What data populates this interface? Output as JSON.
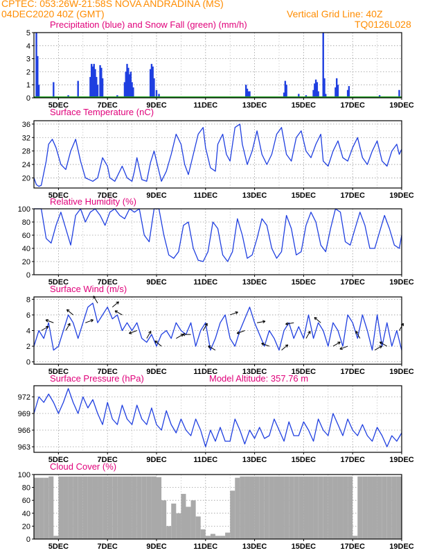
{
  "header": {
    "line1_left": "CPTEC:  053:26W-21:58S  NOVA ANDRADINA (MS)",
    "line2_left": "04DEC2020 40Z (GMT)",
    "line2_right": "Vertical Grid Line: 40Z",
    "line3_right": "TQ0126L028"
  },
  "colors": {
    "header": "#ff8c00",
    "title": "#e0007a",
    "line": "#1f3fe0",
    "precip": "#1f3fe0",
    "snow": "#1fa01f",
    "cloud": "#a9a9a9"
  },
  "chart_data": [
    {
      "type": "bar",
      "title": "Precipitation (blue) and Snow Fall (green) (mm/h)",
      "x_tick_labels": [
        "5DEC",
        "7DEC",
        "9DEC",
        "11DEC",
        "13DEC",
        "15DEC",
        "17DEC",
        "19DEC"
      ],
      "ylim": [
        0,
        5
      ],
      "yticks": [
        0,
        1,
        2,
        3,
        4,
        5
      ],
      "series": [
        {
          "name": "precipitation",
          "points": [
            [
              4.1,
              5.0
            ],
            [
              4.15,
              3.2
            ],
            [
              4.2,
              1.0
            ],
            [
              4.8,
              1.2
            ],
            [
              5.4,
              0.2
            ],
            [
              5.8,
              1.3
            ],
            [
              6.3,
              1.6
            ],
            [
              6.35,
              2.6
            ],
            [
              6.4,
              2.4
            ],
            [
              6.45,
              2.6
            ],
            [
              6.5,
              2.2
            ],
            [
              6.55,
              1.6
            ],
            [
              6.6,
              1.0
            ],
            [
              6.7,
              2.5
            ],
            [
              6.75,
              2.3
            ],
            [
              6.8,
              1.5
            ],
            [
              7.4,
              0.2
            ],
            [
              7.7,
              1.2
            ],
            [
              7.75,
              2.0
            ],
            [
              7.8,
              2.6
            ],
            [
              7.85,
              2.3
            ],
            [
              7.9,
              1.8
            ],
            [
              7.95,
              2.0
            ],
            [
              8.0,
              1.2
            ],
            [
              8.05,
              0.8
            ],
            [
              8.5,
              0.1
            ],
            [
              8.75,
              2.2
            ],
            [
              8.8,
              2.6
            ],
            [
              8.85,
              2.4
            ],
            [
              8.9,
              1.5
            ],
            [
              9.0,
              0.6
            ],
            [
              9.1,
              0.3
            ],
            [
              9.5,
              0.1
            ],
            [
              12.65,
              1.0
            ],
            [
              12.7,
              0.7
            ],
            [
              12.75,
              0.5
            ],
            [
              12.8,
              0.5
            ],
            [
              14.2,
              0.4
            ],
            [
              14.25,
              1.3
            ],
            [
              14.3,
              1.0
            ],
            [
              14.8,
              0.3
            ],
            [
              15.1,
              0.2
            ],
            [
              15.4,
              0.6
            ],
            [
              15.45,
              1.1
            ],
            [
              15.5,
              1.4
            ],
            [
              15.55,
              1.2
            ],
            [
              15.6,
              0.5
            ],
            [
              15.8,
              5.0
            ],
            [
              15.85,
              1.5
            ],
            [
              15.9,
              0.3
            ],
            [
              16.3,
              0.8
            ],
            [
              16.35,
              1.5
            ],
            [
              16.4,
              1.0
            ],
            [
              16.8,
              0.6
            ],
            [
              16.85,
              0.9
            ],
            [
              18.1,
              0.2
            ],
            [
              18.9,
              0.6
            ]
          ]
        },
        {
          "name": "snow fall",
          "values": "zero"
        }
      ]
    },
    {
      "type": "line",
      "title": "Surface Temperature (nC)",
      "x_tick_labels": [
        "5DEC",
        "7DEC",
        "9DEC",
        "11DEC",
        "13DEC",
        "15DEC",
        "17DEC",
        "19DEC"
      ],
      "ylim": [
        17,
        37
      ],
      "yticks": [
        20,
        24,
        28,
        32,
        36
      ],
      "x": [
        4.0,
        4.1,
        4.2,
        4.3,
        4.5,
        4.6,
        4.75,
        4.9,
        5.1,
        5.3,
        5.5,
        5.7,
        5.9,
        6.1,
        6.4,
        6.6,
        6.8,
        7.0,
        7.1,
        7.3,
        7.5,
        7.6,
        7.8,
        8.0,
        8.1,
        8.2,
        8.4,
        8.6,
        8.75,
        8.9,
        9.1,
        9.2,
        9.4,
        9.6,
        9.8,
        10.0,
        10.15,
        10.3,
        10.5,
        10.7,
        10.9,
        11.0,
        11.2,
        11.4,
        11.5,
        11.7,
        11.85,
        12.0,
        12.2,
        12.4,
        12.5,
        12.7,
        12.9,
        13.1,
        13.3,
        13.5,
        13.7,
        13.9,
        14.1,
        14.3,
        14.5,
        14.7,
        14.9,
        15.1,
        15.3,
        15.5,
        15.7,
        15.8,
        16.0,
        16.2,
        16.4,
        16.6,
        16.8,
        17.0,
        17.2,
        17.4,
        17.6,
        17.8,
        18.0,
        18.2,
        18.4,
        18.6,
        18.8,
        18.9,
        19.0
      ],
      "y": [
        20,
        18,
        17.5,
        17.8,
        25,
        30,
        31.5,
        29,
        24,
        22.5,
        28,
        31.5,
        25,
        20,
        19,
        20,
        26,
        23.5,
        20,
        19,
        22,
        23.5,
        20,
        19,
        22,
        26,
        19.5,
        19,
        24.5,
        28,
        22,
        19,
        22,
        27,
        33,
        30,
        24,
        21,
        27,
        33,
        35,
        29,
        23,
        22,
        30,
        33,
        27,
        25,
        35,
        36,
        30,
        24,
        28,
        34,
        27,
        24,
        27,
        33,
        35,
        27,
        25,
        32,
        34,
        28,
        26,
        30,
        33,
        25,
        23.5,
        28,
        31,
        26,
        25,
        29,
        32,
        26,
        24,
        28,
        31,
        25,
        23.5,
        28,
        30,
        27,
        28.5
      ]
    },
    {
      "type": "line",
      "title": "Relative Humidity (%)",
      "x_tick_labels": [
        "5DEC",
        "7DEC",
        "9DEC",
        "11DEC",
        "13DEC",
        "15DEC",
        "17DEC",
        "19DEC"
      ],
      "ylim": [
        0,
        100
      ],
      "yticks": [
        0,
        20,
        40,
        60,
        80,
        100
      ],
      "x": [
        4.0,
        4.3,
        4.5,
        4.7,
        4.9,
        5.1,
        5.3,
        5.5,
        5.7,
        5.9,
        6.1,
        6.3,
        6.5,
        6.7,
        6.9,
        7.1,
        7.3,
        7.5,
        7.7,
        7.9,
        8.1,
        8.3,
        8.5,
        8.7,
        8.9,
        9.1,
        9.3,
        9.5,
        9.7,
        9.9,
        10.1,
        10.3,
        10.5,
        10.7,
        10.9,
        11.1,
        11.3,
        11.5,
        11.7,
        11.9,
        12.1,
        12.3,
        12.5,
        12.7,
        12.9,
        13.1,
        13.3,
        13.5,
        13.7,
        13.9,
        14.1,
        14.3,
        14.5,
        14.7,
        14.9,
        15.1,
        15.3,
        15.5,
        15.7,
        15.9,
        16.1,
        16.3,
        16.5,
        16.7,
        16.9,
        17.1,
        17.3,
        17.5,
        17.7,
        17.9,
        18.1,
        18.3,
        18.5,
        18.7,
        18.9,
        19.0
      ],
      "y": [
        100,
        100,
        55,
        48,
        75,
        95,
        70,
        45,
        90,
        100,
        80,
        95,
        100,
        90,
        75,
        95,
        100,
        90,
        85,
        100,
        95,
        100,
        60,
        50,
        100,
        100,
        60,
        30,
        25,
        35,
        75,
        80,
        40,
        22,
        20,
        35,
        80,
        70,
        30,
        20,
        35,
        85,
        60,
        25,
        30,
        55,
        85,
        75,
        40,
        25,
        35,
        90,
        70,
        30,
        35,
        75,
        95,
        80,
        45,
        35,
        70,
        100,
        95,
        50,
        45,
        70,
        95,
        75,
        40,
        40,
        65,
        90,
        70,
        45,
        40,
        60
      ]
    },
    {
      "type": "line",
      "title": "Surface Wind (m/s)",
      "x_tick_labels": [
        "5DEC",
        "7DEC",
        "9DEC",
        "11DEC",
        "13DEC",
        "15DEC",
        "17DEC",
        "19DEC"
      ],
      "ylim": [
        -0.3,
        8.3
      ],
      "yticks": [
        0,
        2,
        4,
        6,
        8
      ],
      "x": [
        4.0,
        4.2,
        4.4,
        4.6,
        4.8,
        5.0,
        5.2,
        5.4,
        5.6,
        5.8,
        6.0,
        6.2,
        6.4,
        6.6,
        6.8,
        7.0,
        7.2,
        7.4,
        7.6,
        7.8,
        8.0,
        8.2,
        8.4,
        8.6,
        8.8,
        9.0,
        9.2,
        9.4,
        9.6,
        9.8,
        10.0,
        10.2,
        10.4,
        10.6,
        10.8,
        11.0,
        11.2,
        11.4,
        11.6,
        11.8,
        12.0,
        12.2,
        12.4,
        12.6,
        12.8,
        13.0,
        13.2,
        13.4,
        13.6,
        13.8,
        14.0,
        14.2,
        14.4,
        14.6,
        14.8,
        15.0,
        15.2,
        15.4,
        15.6,
        15.8,
        16.0,
        16.2,
        16.4,
        16.6,
        16.8,
        17.0,
        17.2,
        17.4,
        17.6,
        17.8,
        18.0,
        18.2,
        18.4,
        18.6,
        18.8,
        19.0
      ],
      "y": [
        2,
        4,
        3,
        5,
        1.5,
        2,
        4,
        6,
        5,
        3,
        5,
        7,
        7.5,
        5,
        6,
        7,
        5.5,
        6,
        4,
        5,
        4,
        5,
        3,
        2.5,
        3.5,
        2,
        3.5,
        4,
        3,
        5,
        4,
        3.5,
        5,
        2,
        4,
        5,
        1.5,
        3,
        5,
        6,
        3,
        2,
        4,
        5.5,
        7,
        5,
        3.5,
        2,
        4,
        3,
        1.5,
        4,
        5,
        3,
        4.5,
        3,
        6,
        3,
        5,
        4,
        2,
        5,
        4,
        2,
        6,
        5,
        3,
        6,
        4,
        1.5,
        6,
        2,
        5,
        2,
        4,
        1.5
      ]
    },
    {
      "type": "line",
      "title": "Surface Pressure (hPa)",
      "annotation": "Model Altitude: 357.76 m",
      "x_tick_labels": [
        "5DEC",
        "7DEC",
        "9DEC",
        "11DEC",
        "13DEC",
        "15DEC",
        "17DEC",
        "19DEC"
      ],
      "ylim": [
        962,
        974
      ],
      "yticks": [
        963,
        966,
        969,
        972
      ],
      "x": [
        4.0,
        4.2,
        4.4,
        4.6,
        4.8,
        5.0,
        5.2,
        5.4,
        5.6,
        5.8,
        6.0,
        6.2,
        6.4,
        6.6,
        6.8,
        7.0,
        7.2,
        7.4,
        7.6,
        7.8,
        8.0,
        8.2,
        8.4,
        8.6,
        8.8,
        9.0,
        9.2,
        9.4,
        9.6,
        9.8,
        10.0,
        10.2,
        10.4,
        10.6,
        10.8,
        11.0,
        11.2,
        11.4,
        11.6,
        11.8,
        12.0,
        12.2,
        12.4,
        12.6,
        12.8,
        13.0,
        13.2,
        13.4,
        13.6,
        13.8,
        14.0,
        14.2,
        14.4,
        14.6,
        14.8,
        15.0,
        15.2,
        15.4,
        15.6,
        15.8,
        16.0,
        16.2,
        16.4,
        16.6,
        16.8,
        17.0,
        17.2,
        17.4,
        17.6,
        17.8,
        18.0,
        18.2,
        18.4,
        18.6,
        18.8,
        19.0
      ],
      "y": [
        969,
        972,
        971,
        972.5,
        971,
        969,
        971,
        973.5,
        971,
        969,
        972,
        970,
        971.5,
        969,
        967,
        971,
        968,
        967,
        970.5,
        968,
        967,
        970.5,
        968,
        967,
        970,
        967,
        966,
        969.5,
        967,
        965.5,
        968,
        966,
        965,
        968,
        966,
        963,
        966,
        964,
        966.5,
        964,
        964,
        968,
        966,
        963.5,
        966,
        964.5,
        966.5,
        964.5,
        965,
        968,
        966,
        964,
        967.5,
        965,
        965,
        967.5,
        966,
        964,
        968,
        966,
        965,
        969,
        967,
        965,
        968,
        966,
        965,
        967,
        965,
        964,
        966.5,
        965,
        963,
        965,
        964,
        965.5
      ]
    },
    {
      "type": "bar",
      "title": "Cloud Cover (%)",
      "x_tick_labels": [
        "5DEC",
        "7DEC",
        "9DEC",
        "11DEC",
        "13DEC",
        "15DEC",
        "17DEC",
        "19DEC"
      ],
      "ylim": [
        0,
        100
      ],
      "yticks": [
        0,
        20,
        40,
        60,
        80,
        100
      ],
      "x": [
        4.0,
        4.2,
        4.4,
        4.6,
        4.8,
        5.0,
        5.2,
        5.4,
        5.6,
        5.8,
        6.0,
        6.2,
        6.4,
        6.6,
        6.8,
        7.0,
        7.2,
        7.4,
        7.6,
        7.8,
        8.0,
        8.2,
        8.4,
        8.6,
        8.8,
        9.0,
        9.2,
        9.4,
        9.6,
        9.8,
        10.0,
        10.2,
        10.4,
        10.6,
        10.8,
        11.0,
        11.2,
        11.4,
        11.6,
        11.8,
        12.0,
        12.2,
        12.4,
        12.6,
        12.8,
        13.0,
        13.2,
        13.4,
        13.6,
        13.8,
        14.0,
        14.2,
        14.4,
        14.6,
        14.8,
        15.0,
        15.2,
        15.4,
        15.6,
        15.8,
        16.0,
        16.2,
        16.4,
        16.6,
        16.8,
        17.0,
        17.2,
        17.4,
        17.6,
        17.8,
        18.0,
        18.2,
        18.4,
        18.6,
        18.8,
        19.0
      ],
      "y": [
        95,
        95,
        95,
        97,
        5,
        97,
        97,
        97,
        97,
        97,
        97,
        97,
        97,
        97,
        97,
        97,
        97,
        97,
        97,
        97,
        97,
        97,
        97,
        97,
        97,
        96,
        60,
        20,
        55,
        40,
        70,
        50,
        60,
        35,
        15,
        5,
        8,
        5,
        5,
        10,
        75,
        95,
        97,
        97,
        97,
        97,
        97,
        97,
        97,
        97,
        97,
        97,
        97,
        97,
        97,
        97,
        97,
        97,
        97,
        97,
        97,
        97,
        97,
        97,
        97,
        5,
        97,
        97,
        97,
        97,
        97,
        97,
        97,
        97,
        97,
        97
      ]
    }
  ]
}
